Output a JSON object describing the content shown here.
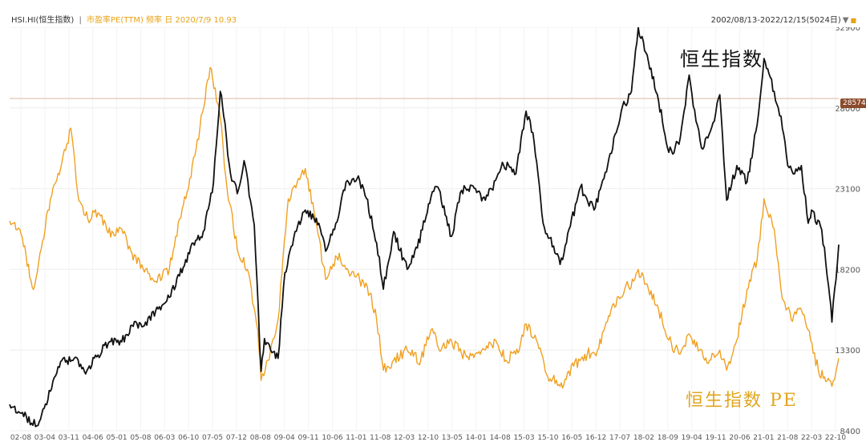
{
  "header": {
    "symbol": "HSI.HI(恒生指数)",
    "separator": "|",
    "pe_info": "市盈率PE(TTM) 频率 日 2020/7/9 10.93",
    "date_range": "2002/08/13-2022/12/15(5024日)",
    "dropdown_icon": "triangle-down-icon"
  },
  "labels": {
    "hsi": "恒生指数",
    "pe": "恒生指数 PE"
  },
  "marker_value": "28574",
  "colors": {
    "index": "#111111",
    "pe": "#f0a020",
    "marker": "#8b4a2b",
    "grid": "#eeeeee"
  },
  "chart_data": {
    "type": "line",
    "title": "",
    "x_tick_labels": [
      "02-08",
      "03-04",
      "03-11",
      "04-06",
      "05-01",
      "05-08",
      "06-03",
      "06-10",
      "07-05",
      "07-12",
      "08-08",
      "09-04",
      "09-11",
      "10-06",
      "11-01",
      "11-08",
      "12-03",
      "12-10",
      "13-05",
      "14-01",
      "14-08",
      "15-03",
      "15-10",
      "16-05",
      "16-12",
      "17-07",
      "18-02",
      "18-09",
      "19-04",
      "19-11",
      "20-06",
      "21-01",
      "21-08",
      "22-03",
      "22-10"
    ],
    "y_ticks": [
      8400,
      13300,
      18200,
      23100,
      28000,
      32900
    ],
    "ylim": [
      8400,
      32900
    ],
    "marker_line": 28574,
    "series": [
      {
        "name": "恒生指数",
        "axis": "right",
        "x": [
          "2002-08",
          "2002-11",
          "2003-04",
          "2003-08",
          "2003-11",
          "2004-03",
          "2004-06",
          "2004-10",
          "2005-01",
          "2005-05",
          "2005-08",
          "2005-12",
          "2006-03",
          "2006-07",
          "2006-10",
          "2007-02",
          "2007-05",
          "2007-08",
          "2007-10",
          "2007-11",
          "2008-01",
          "2008-03",
          "2008-05",
          "2008-08",
          "2008-10",
          "2008-11",
          "2009-03",
          "2009-05",
          "2009-08",
          "2009-11",
          "2010-03",
          "2010-05",
          "2010-08",
          "2010-11",
          "2011-03",
          "2011-05",
          "2011-08",
          "2011-10",
          "2012-01",
          "2012-05",
          "2012-08",
          "2012-12",
          "2013-02",
          "2013-06",
          "2013-09",
          "2013-12",
          "2014-04",
          "2014-07",
          "2014-09",
          "2015-01",
          "2015-04",
          "2015-06",
          "2015-09",
          "2016-02",
          "2016-05",
          "2016-08",
          "2016-12",
          "2017-04",
          "2017-08",
          "2017-11",
          "2018-01",
          "2018-04",
          "2018-07",
          "2018-10",
          "2019-01",
          "2019-04",
          "2019-06",
          "2019-08",
          "2019-11",
          "2020-01",
          "2020-03",
          "2020-06",
          "2020-09",
          "2020-12",
          "2021-02",
          "2021-05",
          "2021-07",
          "2021-09",
          "2021-11",
          "2022-01",
          "2022-03",
          "2022-04",
          "2022-07",
          "2022-09",
          "2022-10",
          "2022-12"
        ],
        "y": [
          10000,
          9500,
          8700,
          10800,
          12600,
          12800,
          12000,
          13000,
          13700,
          13800,
          14800,
          15000,
          15700,
          16500,
          17800,
          19800,
          20500,
          23500,
          29000,
          27500,
          24000,
          22800,
          24800,
          20900,
          12000,
          14000,
          12800,
          18000,
          20500,
          21800,
          21000,
          19300,
          21000,
          23500,
          23600,
          22500,
          19800,
          17000,
          20500,
          18200,
          19500,
          22600,
          23200,
          20200,
          23000,
          23300,
          22400,
          23600,
          24700,
          24000,
          27800,
          26500,
          21000,
          18500,
          20800,
          23200,
          21800,
          24500,
          27800,
          29000,
          32900,
          30800,
          28400,
          25300,
          25800,
          30000,
          27200,
          25500,
          27100,
          28800,
          22400,
          24500,
          23500,
          27000,
          31000,
          29000,
          27500,
          24500,
          24000,
          24500,
          21000,
          21800,
          20600,
          17200,
          15000,
          19700
        ]
      },
      {
        "name": "恒生指数 PE",
        "axis": "left",
        "x": [
          "2002-08",
          "2002-11",
          "2003-03",
          "2003-08",
          "2003-11",
          "2004-02",
          "2004-04",
          "2004-07",
          "2004-10",
          "2005-01",
          "2005-05",
          "2005-08",
          "2005-12",
          "2006-03",
          "2006-07",
          "2006-10",
          "2007-01",
          "2007-04",
          "2007-07",
          "2007-10",
          "2007-12",
          "2008-03",
          "2008-06",
          "2008-09",
          "2008-10",
          "2008-12",
          "2009-03",
          "2009-06",
          "2009-09",
          "2009-11",
          "2010-02",
          "2010-05",
          "2010-09",
          "2010-11",
          "2011-03",
          "2011-06",
          "2011-08",
          "2011-10",
          "2012-01",
          "2012-05",
          "2012-09",
          "2012-12",
          "2013-03",
          "2013-06",
          "2013-09",
          "2014-01",
          "2014-04",
          "2014-07",
          "2014-10",
          "2015-02",
          "2015-04",
          "2015-07",
          "2015-10",
          "2016-02",
          "2016-06",
          "2016-10",
          "2017-01",
          "2017-05",
          "2017-09",
          "2017-12",
          "2018-01",
          "2018-04",
          "2018-07",
          "2018-10",
          "2019-01",
          "2019-04",
          "2019-07",
          "2019-10",
          "2020-01",
          "2020-03",
          "2020-06",
          "2020-09",
          "2020-12",
          "2021-02",
          "2021-05",
          "2021-07",
          "2021-10",
          "2022-01",
          "2022-03",
          "2022-06",
          "2022-10",
          "2022-12"
        ],
        "y": [
          14.4,
          14.0,
          11.0,
          15.5,
          17.0,
          19.0,
          15.8,
          14.5,
          14.8,
          13.8,
          14.0,
          12.8,
          12.0,
          11.4,
          12.0,
          14.5,
          16.5,
          19.0,
          22.0,
          19.5,
          16.0,
          13.0,
          12.0,
          9.0,
          6.5,
          7.5,
          9.5,
          15.5,
          16.5,
          17.0,
          14.5,
          11.5,
          12.8,
          12.0,
          11.5,
          10.8,
          9.5,
          7.0,
          7.5,
          8.0,
          7.5,
          9.0,
          8.0,
          8.5,
          7.8,
          7.8,
          8.0,
          8.5,
          7.5,
          8.0,
          9.3,
          8.5,
          6.8,
          6.2,
          7.2,
          7.8,
          8.0,
          10.0,
          11.0,
          11.5,
          12.0,
          11.0,
          10.0,
          8.5,
          7.8,
          8.8,
          8.0,
          7.5,
          8.0,
          7.0,
          8.5,
          11.0,
          12.5,
          15.5,
          14.0,
          11.0,
          9.5,
          10.0,
          9.0,
          7.0,
          6.2,
          7.6
        ]
      }
    ]
  }
}
